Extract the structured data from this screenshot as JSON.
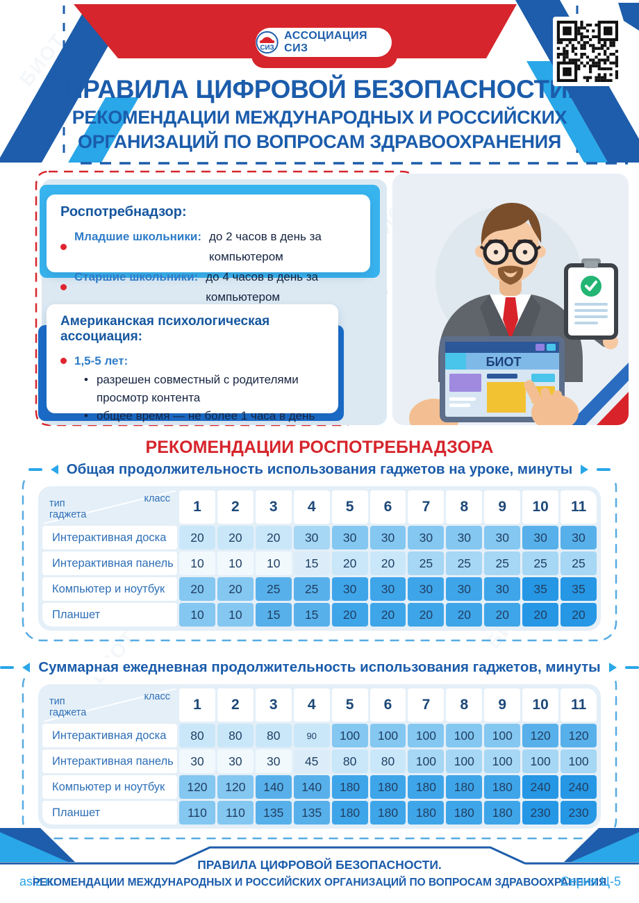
{
  "colors": {
    "navy": "#1d5dab",
    "title_blue": "#1b5cab",
    "red": "#d6252c",
    "cyan": "#2aa7e8",
    "panel_blue": "#dce9f3",
    "card_backing_cyan": "#38b4ef",
    "card_backing_blue": "#1a6bc8",
    "table_bg": "#e4eff8",
    "label_blue": "#2e6fb6",
    "number_navy": "#1d4878",
    "cell_text": "#203f63",
    "link_blue": "#2ba2e9",
    "cell_palette": [
      "#f1f9fd",
      "#dcedf9",
      "#c9e7f9",
      "#a6d7f4",
      "#84c7f1",
      "#58b0ea",
      "#3fa5e9",
      "#2697e4"
    ]
  },
  "header": {
    "badge_label": "АССОЦИАЦИЯ СИЗ",
    "logo_text": "СИЗ"
  },
  "title": {
    "line1": "ПРАВИЛА ЦИФРОВОЙ БЕЗОПАСНОСТИ.",
    "line2": "РЕКОМЕНДАЦИИ МЕЖДУНАРОДНЫХ И РОССИЙСКИХ",
    "line3": "ОРГАНИЗАЦИЙ ПО ВОПРОСАМ ЗДРАВООХРАНЕНИЯ"
  },
  "cards": [
    {
      "title": "Роспотребнадзор:",
      "bullets": [
        {
          "label": "Младшие школьники:",
          "text": "до 2 часов в день за компьютером"
        },
        {
          "label": "Старшие школьники:",
          "text": "до 4 часов в день за компьютером"
        }
      ]
    },
    {
      "title": "Американская психологическая ассоциация:",
      "bullets": [
        {
          "label": "1,5-5 лет:",
          "text": "",
          "sub": [
            "разрешен  совместный с родителями просмотр контента",
            "общее время — не более 1 часа в день"
          ]
        }
      ]
    }
  ],
  "illustration": {
    "tablet_title": "БИОТ"
  },
  "section_title": "РЕКОМЕНДАЦИИ РОСПОТРЕБНАДЗОРА",
  "tables": [
    {
      "caption": "Общая продолжительность использования гаджетов на уроке, минуты",
      "corner_left": "тип гаджета",
      "corner_right": "класс",
      "columns": [
        "1",
        "2",
        "3",
        "4",
        "5",
        "6",
        "7",
        "8",
        "9",
        "10",
        "11"
      ],
      "rows": [
        {
          "label": "Интерактивная доска",
          "values": [
            20,
            20,
            20,
            30,
            30,
            30,
            30,
            30,
            30,
            30,
            30
          ],
          "shades": [
            2,
            2,
            2,
            3,
            4,
            4,
            4,
            4,
            4,
            5,
            5
          ]
        },
        {
          "label": "Интерактивная панель",
          "values": [
            10,
            10,
            10,
            15,
            20,
            20,
            25,
            25,
            25,
            25,
            25
          ],
          "shades": [
            0,
            0,
            0,
            1,
            2,
            2,
            3,
            3,
            3,
            3,
            3
          ]
        },
        {
          "label": "Компьютер и ноутбук",
          "values": [
            20,
            20,
            25,
            25,
            30,
            30,
            30,
            30,
            30,
            35,
            35
          ],
          "shades": [
            4,
            4,
            5,
            5,
            6,
            6,
            6,
            6,
            6,
            7,
            7
          ]
        },
        {
          "label": "Планшет",
          "values": [
            10,
            10,
            15,
            15,
            20,
            20,
            20,
            20,
            20,
            20,
            20
          ],
          "shades": [
            4,
            4,
            5,
            5,
            6,
            6,
            6,
            6,
            6,
            7,
            7
          ]
        }
      ]
    },
    {
      "caption": "Суммарная ежедневная продолжительность использования гаджетов, минуты",
      "corner_left": "тип гаджета",
      "corner_right": "класс",
      "columns": [
        "1",
        "2",
        "3",
        "4",
        "5",
        "6",
        "7",
        "8",
        "9",
        "10",
        "11"
      ],
      "rows": [
        {
          "label": "Интерактивная доска",
          "values": [
            80,
            80,
            80,
            90,
            100,
            100,
            100,
            100,
            100,
            120,
            120
          ],
          "shades": [
            2,
            2,
            2,
            2,
            4,
            4,
            4,
            4,
            4,
            5,
            5
          ],
          "small_indices": [
            3
          ]
        },
        {
          "label": "Интерактивная панель",
          "values": [
            30,
            30,
            30,
            45,
            80,
            80,
            100,
            100,
            100,
            100,
            100
          ],
          "shades": [
            0,
            0,
            0,
            1,
            2,
            2,
            3,
            3,
            3,
            3,
            3
          ]
        },
        {
          "label": "Компьютер и ноутбук",
          "values": [
            120,
            120,
            140,
            140,
            180,
            180,
            180,
            180,
            180,
            240,
            240
          ],
          "shades": [
            4,
            4,
            5,
            5,
            6,
            6,
            6,
            6,
            6,
            7,
            7
          ]
        },
        {
          "label": "Планшет",
          "values": [
            110,
            110,
            135,
            135,
            180,
            180,
            180,
            180,
            180,
            230,
            230
          ],
          "shades": [
            4,
            4,
            5,
            5,
            6,
            6,
            6,
            6,
            6,
            7,
            7
          ]
        }
      ]
    }
  ],
  "footer": {
    "site": "asiz.ru",
    "line1": "ПРАВИЛА ЦИФРОВОЙ БЕЗОПАСНОСТИ.",
    "line2": "РЕКОМЕНДАЦИИ МЕЖДУНАРОДНЫХ И РОССИЙСКИХ ОРГАНИЗАЦИЙ ПО ВОПРОСАМ ЗДРАВООХРАНЕНИЯ",
    "series": "Серия Ц-5"
  },
  "watermark": "БИОТ"
}
